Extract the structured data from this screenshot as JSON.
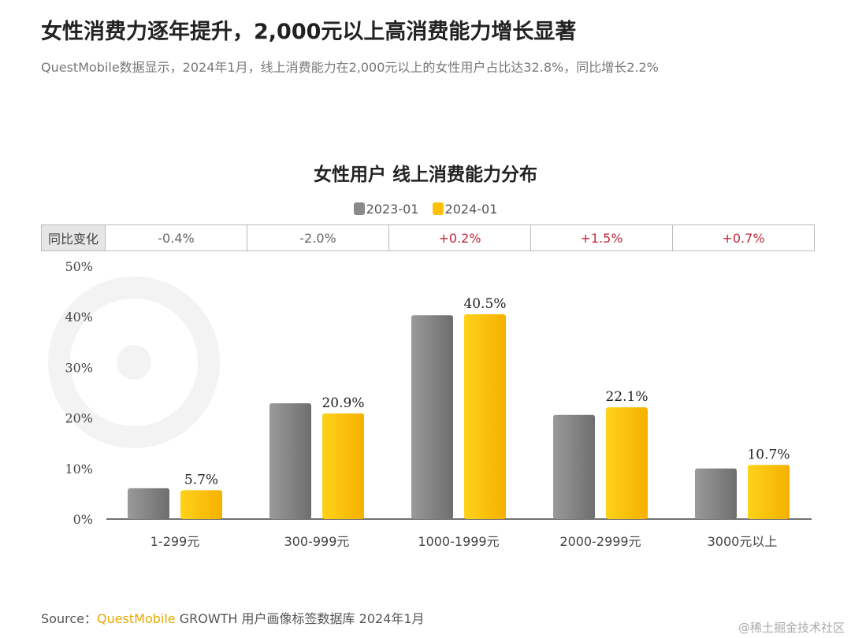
{
  "header": {
    "title": "女性消费力逐年提升，2,000元以上高消费能力增长显著",
    "subtitle": "QuestMobile数据显示，2024年1月，线上消费能力在2,000元以上的女性用户占比达32.8%，同比增长2.2%"
  },
  "watermark_logo": "QUESTMOBILE",
  "chart_data": {
    "type": "bar",
    "title": "女性用户 线上消费能力分布",
    "categories": [
      "1-299元",
      "300-999元",
      "1000-1999元",
      "2000-2999元",
      "3000元以上"
    ],
    "series": [
      {
        "name": "2023-01",
        "values": [
          6.1,
          22.9,
          40.3,
          20.6,
          10.0
        ],
        "color": "#8a8a8a"
      },
      {
        "name": "2024-01",
        "values": [
          5.7,
          20.9,
          40.5,
          22.1,
          10.7
        ],
        "color": "#fcc20a",
        "labels": [
          "5.7%",
          "20.9%",
          "40.5%",
          "22.1%",
          "10.7%"
        ]
      }
    ],
    "ylim": [
      0,
      50
    ],
    "yticks": [
      "0%",
      "10%",
      "20%",
      "30%",
      "40%",
      "50%"
    ],
    "grid": false,
    "legend_placement": "top-center",
    "yoy_table": {
      "header": "同比变化",
      "values": [
        "-0.4%",
        "-2.0%",
        "+0.2%",
        "+1.5%",
        "+0.7%"
      ],
      "positive_color": "#c0283a"
    }
  },
  "footer": {
    "source_label": "Source：",
    "source_brand": "QuestMobile",
    "source_rest": " GROWTH 用户画像标签数据库 2024年1月",
    "credit": "@稀土掘金技术社区"
  }
}
